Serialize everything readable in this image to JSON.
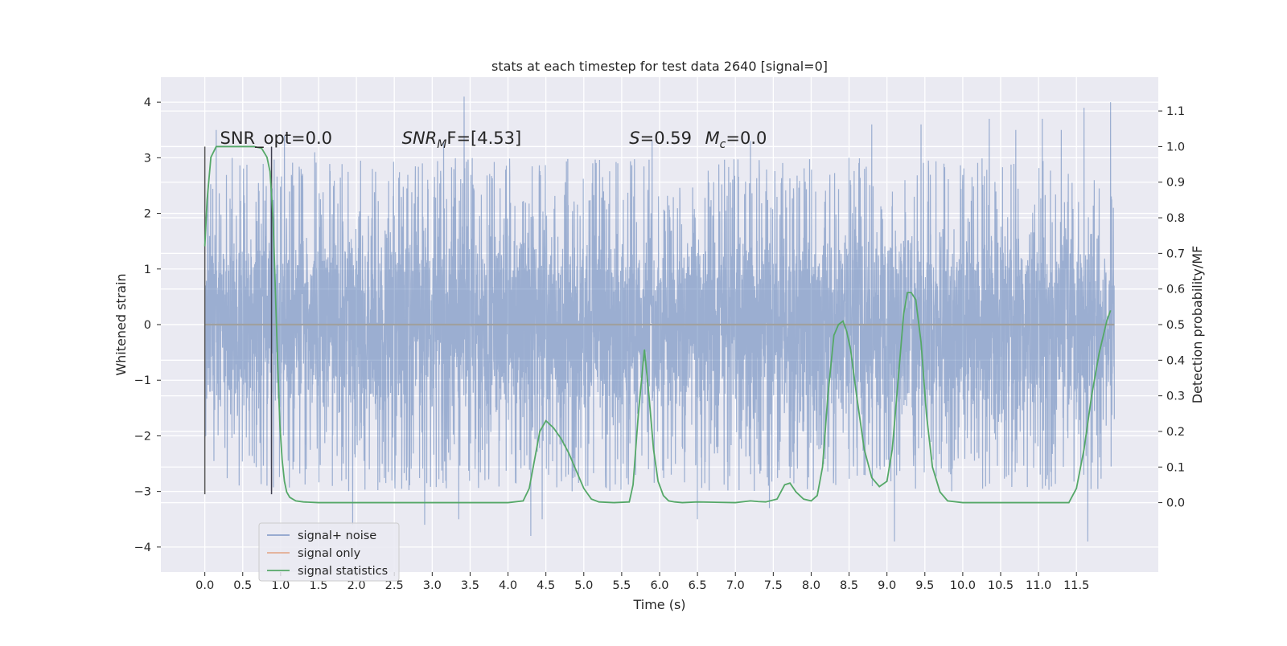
{
  "chart_data": {
    "type": "line",
    "title": "stats at each timestep for test data 2640 [signal=0]",
    "xlabel": "Time (s)",
    "ylabel_left": "Whitened strain",
    "ylabel_right": "Detection probability/MF",
    "xlim": [
      -0.58,
      12.58
    ],
    "ylim_left": [
      -4.45,
      4.45
    ],
    "ylim_right": [
      -0.195,
      1.195
    ],
    "x_ticks": [
      0.0,
      0.5,
      1.0,
      1.5,
      2.0,
      2.5,
      3.0,
      3.5,
      4.0,
      4.5,
      5.0,
      5.5,
      6.0,
      6.5,
      7.0,
      7.5,
      8.0,
      8.5,
      9.0,
      9.5,
      10.0,
      10.5,
      11.0,
      11.5
    ],
    "x_tick_labels": [
      "0.0",
      "0.5",
      "1.0",
      "1.5",
      "2.0",
      "2.5",
      "3.0",
      "3.5",
      "4.0",
      "4.5",
      "5.0",
      "5.5",
      "6.0",
      "6.5",
      "7.0",
      "7.5",
      "8.0",
      "8.5",
      "9.0",
      "9.5",
      "10.0",
      "10.5",
      "11.0",
      "11.5"
    ],
    "y_left_ticks": [
      -4,
      -3,
      -2,
      -1,
      0,
      1,
      2,
      3,
      4
    ],
    "y_left_tick_labels": [
      "−4",
      "−3",
      "−2",
      "−1",
      "0",
      "1",
      "2",
      "3",
      "4"
    ],
    "y_right_ticks": [
      0.0,
      0.1,
      0.2,
      0.3,
      0.4,
      0.5,
      0.6,
      0.7,
      0.8,
      0.9,
      1.0,
      1.1
    ],
    "y_right_tick_labels": [
      "0.0",
      "0.1",
      "0.2",
      "0.3",
      "0.4",
      "0.5",
      "0.6",
      "0.7",
      "0.8",
      "0.9",
      "1.0",
      "1.1"
    ],
    "grid": true,
    "legend_position": "lower-left",
    "series": [
      {
        "name": "signal+ noise",
        "axis": "left",
        "color": "#4c72b0",
        "t_start": 0.0,
        "t_end": 12.0,
        "typical_range": [
          -1.9,
          1.9
        ],
        "peaks": [
          [
            0.15,
            3.5
          ],
          [
            1.05,
            3.4
          ],
          [
            1.45,
            3.1
          ],
          [
            1.95,
            -3.6
          ],
          [
            2.9,
            -3.6
          ],
          [
            3.15,
            3.3
          ],
          [
            3.42,
            4.1
          ],
          [
            3.35,
            -3.5
          ],
          [
            4.3,
            -3.8
          ],
          [
            4.45,
            -3.5
          ],
          [
            5.9,
            3.3
          ],
          [
            6.5,
            4.1
          ],
          [
            6.5,
            -3.5
          ],
          [
            7.2,
            3.3
          ],
          [
            7.45,
            -3.3
          ],
          [
            8.5,
            3.0
          ],
          [
            8.8,
            3.6
          ],
          [
            9.1,
            -3.9
          ],
          [
            9.45,
            3.6
          ],
          [
            10.35,
            3.7
          ],
          [
            10.7,
            3.5
          ],
          [
            11.05,
            3.7
          ],
          [
            11.3,
            3.5
          ],
          [
            11.6,
            3.9
          ],
          [
            11.65,
            -3.9
          ],
          [
            11.95,
            4.0
          ]
        ]
      },
      {
        "name": "signal only",
        "axis": "left",
        "color": "#dd8452",
        "x": [
          0.0,
          12.0
        ],
        "y": [
          0.0,
          0.0
        ]
      },
      {
        "name": "signal statistics",
        "axis": "right",
        "color": "#55a868",
        "x": [
          0.0,
          0.03,
          0.08,
          0.15,
          0.3,
          0.5,
          0.65,
          0.75,
          0.82,
          0.86,
          0.9,
          0.93,
          0.96,
          0.99,
          1.02,
          1.05,
          1.08,
          1.12,
          1.2,
          1.3,
          1.5,
          2.0,
          2.5,
          3.0,
          3.5,
          4.0,
          4.2,
          4.28,
          4.35,
          4.42,
          4.5,
          4.6,
          4.7,
          4.8,
          4.9,
          5.0,
          5.1,
          5.2,
          5.4,
          5.6,
          5.65,
          5.72,
          5.8,
          5.86,
          5.92,
          5.98,
          6.05,
          6.12,
          6.2,
          6.3,
          6.5,
          7.0,
          7.2,
          7.3,
          7.4,
          7.55,
          7.65,
          7.72,
          7.8,
          7.9,
          8.0,
          8.08,
          8.15,
          8.22,
          8.3,
          8.36,
          8.42,
          8.47,
          8.52,
          8.6,
          8.7,
          8.8,
          8.9,
          9.0,
          9.07,
          9.15,
          9.22,
          9.27,
          9.32,
          9.38,
          9.45,
          9.52,
          9.6,
          9.7,
          9.8,
          10.0,
          10.5,
          11.0,
          11.4,
          11.5,
          11.6,
          11.7,
          11.8,
          11.9,
          11.95
        ],
        "y": [
          0.72,
          0.85,
          0.97,
          1.0,
          1.0,
          1.0,
          1.0,
          0.995,
          0.97,
          0.93,
          0.8,
          0.6,
          0.4,
          0.22,
          0.12,
          0.06,
          0.03,
          0.015,
          0.005,
          0.002,
          0.0,
          0.0,
          0.0,
          0.0,
          0.0,
          0.0,
          0.005,
          0.04,
          0.12,
          0.2,
          0.23,
          0.21,
          0.18,
          0.14,
          0.09,
          0.04,
          0.01,
          0.002,
          0.0,
          0.002,
          0.05,
          0.25,
          0.43,
          0.3,
          0.15,
          0.06,
          0.02,
          0.005,
          0.002,
          0.0,
          0.002,
          0.0,
          0.005,
          0.003,
          0.002,
          0.01,
          0.05,
          0.055,
          0.03,
          0.01,
          0.005,
          0.02,
          0.1,
          0.3,
          0.47,
          0.5,
          0.51,
          0.48,
          0.43,
          0.3,
          0.15,
          0.07,
          0.045,
          0.06,
          0.15,
          0.35,
          0.53,
          0.59,
          0.59,
          0.57,
          0.45,
          0.25,
          0.1,
          0.03,
          0.005,
          0.0,
          0.0,
          0.0,
          0.0,
          0.04,
          0.15,
          0.3,
          0.42,
          0.51,
          0.54
        ]
      }
    ],
    "vertical_lines": [
      {
        "x": 0.0,
        "y_range": [
          -3.05,
          3.2
        ],
        "color": "#555555"
      },
      {
        "x": 0.88,
        "y_range": [
          -3.05,
          3.2
        ],
        "color": "#3f3f4f"
      }
    ],
    "annotations": [
      {
        "x": 0.2,
        "y": 3.25,
        "plain": "SNR_opt=0.0"
      },
      {
        "x": 2.6,
        "y": 3.25,
        "base": "SNR",
        "sub": "M",
        "rest": "F=[4.53]"
      },
      {
        "x": 5.6,
        "y": 3.25,
        "base": "S",
        "rest": "=0.59"
      },
      {
        "x": 6.6,
        "y": 3.25,
        "base": "M",
        "sub": "c",
        "rest": "=0.0"
      }
    ]
  }
}
